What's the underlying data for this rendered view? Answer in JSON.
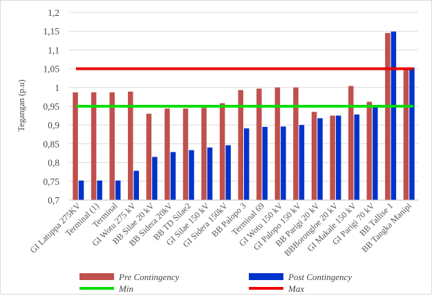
{
  "chart_data": {
    "type": "bar",
    "ylabel": "Tegangan (p.u)",
    "ylim": [
      0.7,
      1.2
    ],
    "yticks": [
      "0,7",
      "0,75",
      "0,8",
      "0,85",
      "0,9",
      "0,95",
      "1",
      "1,05",
      "1,1",
      "1,15",
      "1,2"
    ],
    "grid": true,
    "categories": [
      "GI Latuppa 275KV",
      "Terminal (1)",
      "Terminal",
      "GI Wotu 275 kV",
      "BB Silae 20 kV",
      "BB Sidera 20kV",
      "BB TD Silae2",
      "GI Silae 150 kV",
      "GI Sidera 150kV",
      "BB Palopo 3",
      "Terminal 69",
      "GI Wotu 150 kV",
      "GI Palopo 150 kV",
      "BB Parigi 20 kV",
      "BBBorongloe 20 kV",
      "GI Makale 150 kV",
      "GI Parigi 70 kV",
      "BB Tallise 1",
      "BB Tangka Manipi"
    ],
    "series": [
      {
        "name": "Pre Contingency",
        "color": "#c0504d",
        "values": [
          0.987,
          0.987,
          0.987,
          0.989,
          0.93,
          0.944,
          0.944,
          0.946,
          0.958,
          0.993,
          0.997,
          1.0,
          1.0,
          0.935,
          0.925,
          1.004,
          0.962,
          1.145,
          1.053
        ]
      },
      {
        "name": "Post Contingency",
        "color": "#0033cc",
        "values": [
          0.752,
          0.752,
          0.752,
          0.778,
          0.815,
          0.828,
          0.833,
          0.84,
          0.846,
          0.891,
          0.895,
          0.896,
          0.9,
          0.918,
          0.925,
          0.928,
          0.948,
          1.149,
          1.053
        ]
      }
    ],
    "reference_lines": [
      {
        "name": "Min",
        "value": 0.95,
        "color": "#00dd00"
      },
      {
        "name": "Max",
        "value": 1.05,
        "color": "#ee0000"
      }
    ],
    "legend_position": "bottom"
  }
}
